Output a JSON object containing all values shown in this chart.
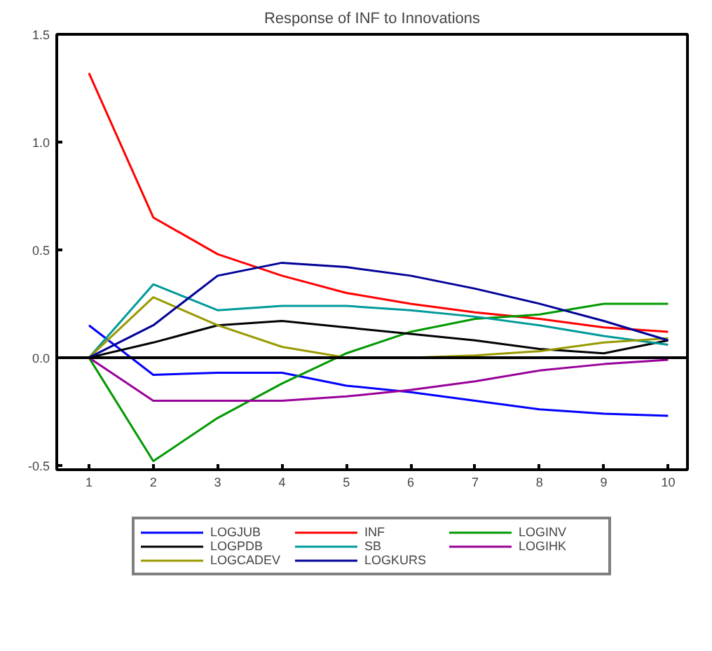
{
  "chart_data": {
    "type": "line",
    "title": "Response of INF to Innovations",
    "x": [
      1,
      2,
      3,
      4,
      5,
      6,
      7,
      8,
      9,
      10
    ],
    "xlim": [
      0.5,
      10.3
    ],
    "xticks": [
      1,
      2,
      3,
      4,
      5,
      6,
      7,
      8,
      9,
      10
    ],
    "ylim": [
      -0.52,
      1.5
    ],
    "yticks": [
      {
        "value": -0.5,
        "label": "-0.5"
      },
      {
        "value": 0,
        "label": "0.0"
      },
      {
        "value": 0.5,
        "label": "0.5"
      },
      {
        "value": 1,
        "label": "1.0"
      },
      {
        "value": 1.5,
        "label": "1.5"
      }
    ],
    "grid": false,
    "legend": "bottom",
    "line_style": "solid",
    "ref_lines": [
      {
        "axis": "y",
        "value": 0,
        "color": "#000000"
      }
    ],
    "series": [
      {
        "name": "LOGJUB",
        "color": "#0000ff",
        "values": [
          0.15,
          -0.08,
          -0.07,
          -0.07,
          -0.13,
          -0.16,
          -0.2,
          -0.24,
          -0.26,
          -0.27
        ]
      },
      {
        "name": "INF",
        "color": "#ff0000",
        "values": [
          1.32,
          0.65,
          0.48,
          0.38,
          0.3,
          0.25,
          0.21,
          0.18,
          0.14,
          0.12
        ]
      },
      {
        "name": "LOGINV",
        "color": "#009900",
        "values": [
          0,
          -0.48,
          -0.28,
          -0.12,
          0.02,
          0.12,
          0.18,
          0.2,
          0.25,
          0.25
        ]
      },
      {
        "name": "LOGPDB",
        "color": "#000000",
        "values": [
          0,
          0.07,
          0.15,
          0.17,
          0.14,
          0.11,
          0.08,
          0.04,
          0.02,
          0.08
        ]
      },
      {
        "name": "SB",
        "color": "#009999",
        "values": [
          0,
          0.34,
          0.22,
          0.24,
          0.24,
          0.22,
          0.19,
          0.15,
          0.1,
          0.06
        ]
      },
      {
        "name": "LOGIHK",
        "color": "#990099",
        "values": [
          0,
          -0.2,
          -0.2,
          -0.2,
          -0.18,
          -0.15,
          -0.11,
          -0.06,
          -0.03,
          -0.01
        ]
      },
      {
        "name": "LOGCADEV",
        "color": "#999900",
        "values": [
          0,
          0.28,
          0.15,
          0.05,
          0,
          0,
          0.01,
          0.03,
          0.07,
          0.09
        ]
      },
      {
        "name": "LOGKURS",
        "color": "#000099",
        "values": [
          0,
          0.15,
          0.38,
          0.44,
          0.42,
          0.38,
          0.32,
          0.25,
          0.17,
          0.08
        ]
      }
    ]
  }
}
